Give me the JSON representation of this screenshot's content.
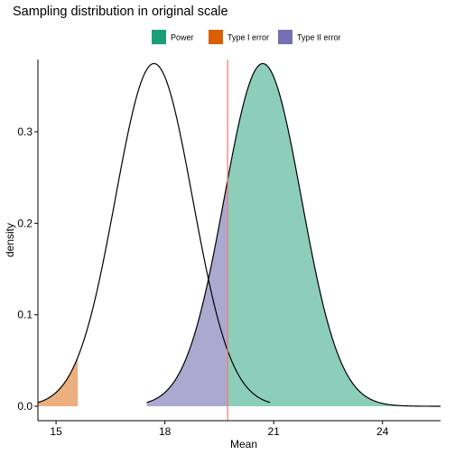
{
  "chart_data": {
    "type": "area",
    "title": "Sampling distribution in original scale",
    "xlabel": "Mean",
    "ylabel": "density",
    "xlim": [
      14.5,
      25.6
    ],
    "ylim": [
      0,
      0.375
    ],
    "x_ticks": [
      15,
      18,
      21,
      24
    ],
    "y_ticks": [
      0.0,
      0.1,
      0.2,
      0.3
    ],
    "y_tick_labels": [
      "0.0",
      "0.1",
      "0.2",
      "0.3"
    ],
    "grid": false,
    "legend_position": "top",
    "critical_value": 19.73,
    "critical_line_color": "#f8766d",
    "distributions": [
      {
        "name": "null",
        "mean": 17.7,
        "sd": 1.065,
        "range": [
          14.5,
          20.9
        ]
      },
      {
        "name": "alternative",
        "mean": 20.7,
        "sd": 1.065,
        "range": [
          17.5,
          25.6
        ]
      }
    ],
    "series": [
      {
        "name": "Power",
        "color": "#1b9e77",
        "fill_opacity": 0.5,
        "x_from": 19.73,
        "x_to": 25.6,
        "curve": "alternative"
      },
      {
        "name": "Type I error",
        "color": "#d95f02",
        "fill_opacity": 0.5,
        "x_from": 14.5,
        "x_to": 15.6,
        "curve": "null"
      },
      {
        "name": "Type II error",
        "color": "#7570b3",
        "fill_opacity": 0.6,
        "x_from": 17.5,
        "x_to": 19.73,
        "curve": "alternative"
      }
    ]
  }
}
